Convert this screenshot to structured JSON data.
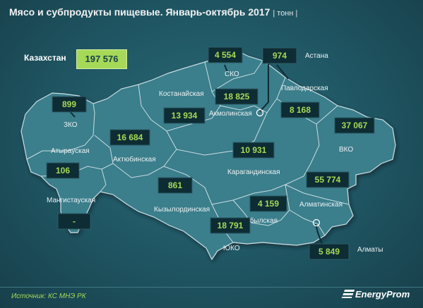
{
  "title": "Мясо и субпродукты пищевые. Январь-октябрь 2017",
  "unit": "| тонн |",
  "country": {
    "label": "Казахстан",
    "value": "197 576"
  },
  "regions": [
    {
      "id": "zko",
      "label": "ЗКО",
      "value": "899"
    },
    {
      "id": "atyrau",
      "label": "Атырауская",
      "value": "106"
    },
    {
      "id": "mangystau",
      "label": "Мангистауская",
      "value": "-"
    },
    {
      "id": "aktobe",
      "label": "Актюбинская",
      "value": "16 684"
    },
    {
      "id": "kostanay",
      "label": "Костанайская",
      "value": "13 934"
    },
    {
      "id": "sko",
      "label": "СКО",
      "value": "4 554"
    },
    {
      "id": "astana",
      "label": "Астана",
      "value": "974"
    },
    {
      "id": "akmola",
      "label": "Акмолинская",
      "value": "18 825"
    },
    {
      "id": "pavlodar",
      "label": "Павлодарская",
      "value": "8 168"
    },
    {
      "id": "vko",
      "label": "ВКО",
      "value": "37 067"
    },
    {
      "id": "karaganda",
      "label": "Карагандинская",
      "value": "10 931"
    },
    {
      "id": "kyzylorda",
      "label": "Кызылординская",
      "value": "861"
    },
    {
      "id": "zhambyl",
      "label": "Жамбылская",
      "value": "4 159"
    },
    {
      "id": "almaty_obl",
      "label": "Алматинская",
      "value": "55 774"
    },
    {
      "id": "yuko",
      "label": "ЮКО",
      "value": "18 791"
    },
    {
      "id": "almaty",
      "label": "Алматы",
      "value": "5 849"
    }
  ],
  "source": "Источник: КС МНЭ РК",
  "logo": "EnergyProm",
  "colors": {
    "background": "#1f5562",
    "land": "#3a7e8c",
    "border": "#c8dde1",
    "value_box": "#0e2c33",
    "value_text": "#a6d957",
    "total_box": "#a6d957"
  }
}
